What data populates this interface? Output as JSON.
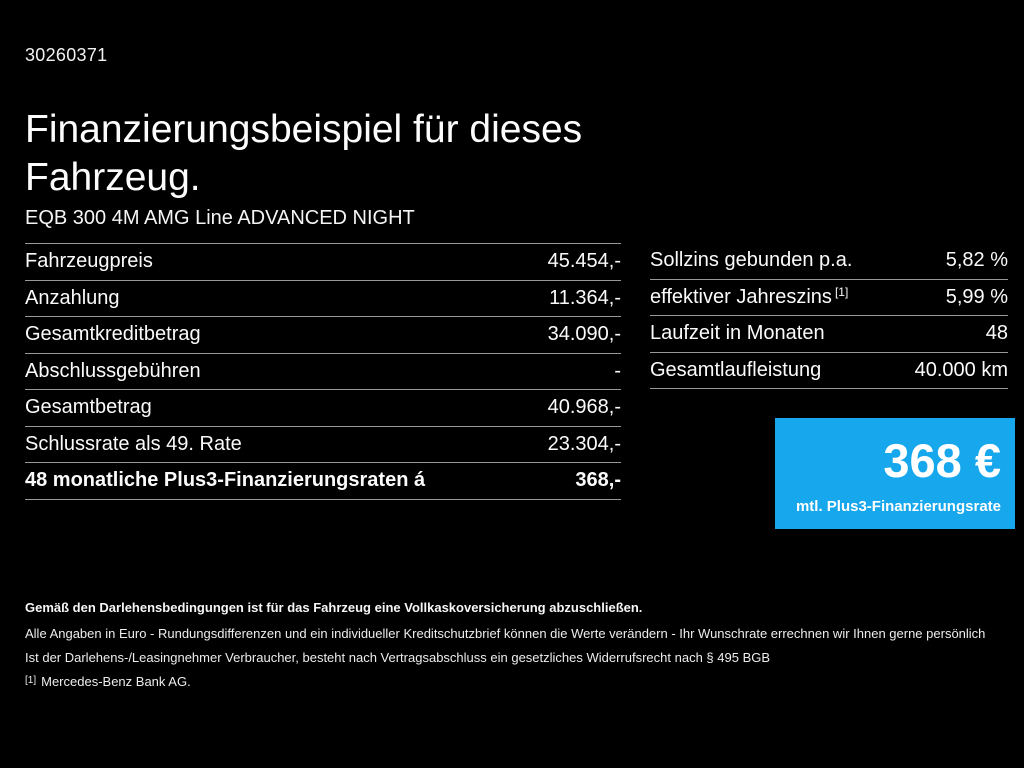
{
  "page": {
    "background": "#000000",
    "doc_id": "30260371",
    "title": "Finanzierungsbeispiel für dieses Fahrzeug.",
    "vehicle_name": "EQB 300 4M AMG Line ADVANCED NIGHT"
  },
  "finance_table": {
    "rows": [
      {
        "label": "Fahrzeugpreis",
        "value": "45.454,-"
      },
      {
        "label": "Anzahlung",
        "value": "11.364,-"
      },
      {
        "label": "Gesamtkreditbetrag",
        "value": "34.090,-"
      },
      {
        "label": "Abschlussgebühren",
        "value": "-"
      },
      {
        "label": "Gesamtbetrag",
        "value": "40.968,-"
      },
      {
        "label": "Schlussrate als 49. Rate",
        "value": "23.304,-"
      },
      {
        "label": "48 monatliche Plus3-Finanzierungsraten á",
        "value": "368,-"
      }
    ]
  },
  "conditions_table": {
    "rows": [
      {
        "label": "Sollzins gebunden p.a.",
        "value": "5,82 %"
      },
      {
        "label": "effektiver Jahreszins",
        "sup": "[1]",
        "value": "5,99 %"
      },
      {
        "label": "Laufzeit in Monaten",
        "value": "48"
      },
      {
        "label": "Gesamtlaufleistung",
        "value": "40.000 km"
      }
    ]
  },
  "rate_box": {
    "amount": "368 €",
    "caption": "mtl. Plus3-Finanzierungsrate",
    "background_color": "#17a7ec"
  },
  "footer": {
    "line1": "Gemäß den Darlehensbedingungen ist für das Fahrzeug eine Vollkaskoversicherung abzuschließen.",
    "line2": "Alle Angaben in Euro - Rundungsdifferenzen und ein individueller Kreditschutzbrief können die Werte verändern - Ihr Wunschrate errechnen wir Ihnen gerne persönlich",
    "line3": "Ist der Darlehens-/Leasingnehmer Verbraucher, besteht nach Vertragsabschluss ein gesetzliches Widerrufsrecht nach § 495 BGB",
    "footnote_marker": "[1]",
    "footnote_text": "Mercedes-Benz Bank AG."
  }
}
